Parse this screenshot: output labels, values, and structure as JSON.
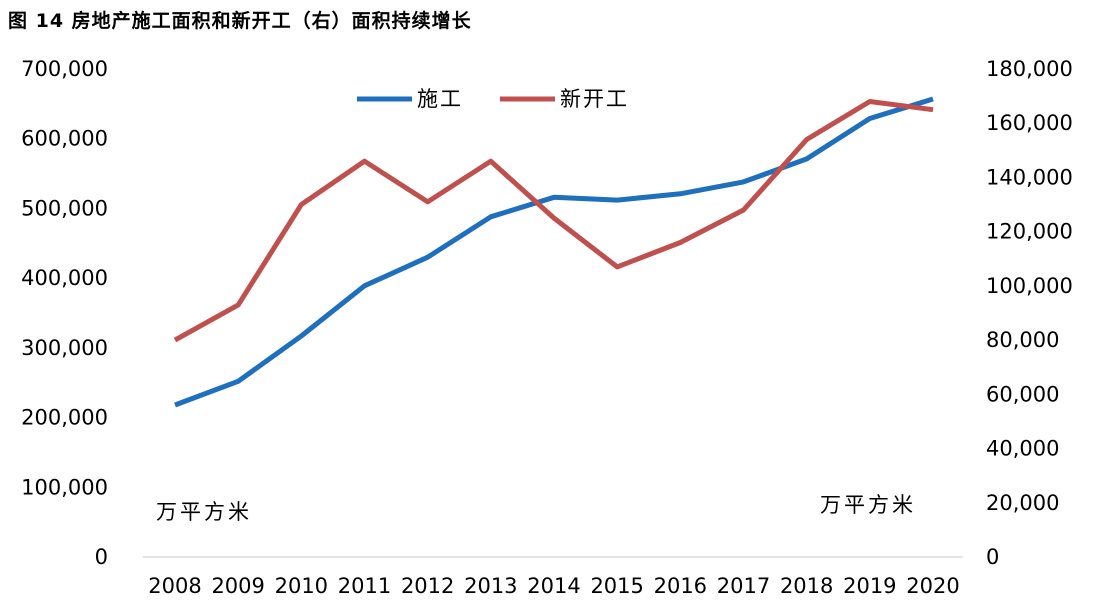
{
  "chart_data": {
    "type": "line",
    "title": "图 14 房地产施工面积和新开工（右）面积持续增长",
    "categories": [
      "2008",
      "2009",
      "2010",
      "2011",
      "2012",
      "2013",
      "2014",
      "2015",
      "2016",
      "2017",
      "2018",
      "2019",
      "2020"
    ],
    "series": [
      {
        "name": "施工",
        "axis": "left",
        "color": "#1f6fbf",
        "values": [
          218000,
          252000,
          317000,
          389000,
          430000,
          488000,
          516000,
          512000,
          521000,
          538000,
          571000,
          629000,
          657000
        ]
      },
      {
        "name": "新开工",
        "axis": "right",
        "color": "#c0504d",
        "values": [
          80000,
          93000,
          130000,
          146000,
          131000,
          146000,
          125000,
          107000,
          116000,
          128000,
          154000,
          168000,
          165000
        ]
      }
    ],
    "y_left": {
      "ylim": [
        0,
        700000
      ],
      "ticks": [
        "0",
        "100,000",
        "200,000",
        "300,000",
        "400,000",
        "500,000",
        "600,000",
        "700,000"
      ],
      "unit": "万平方米"
    },
    "y_right": {
      "ylim": [
        0,
        180000
      ],
      "ticks": [
        "0",
        "20,000",
        "40,000",
        "60,000",
        "80,000",
        "100,000",
        "120,000",
        "140,000",
        "160,000",
        "180,000"
      ],
      "unit": "万平方米"
    },
    "legend": "top-center",
    "grid": false
  }
}
